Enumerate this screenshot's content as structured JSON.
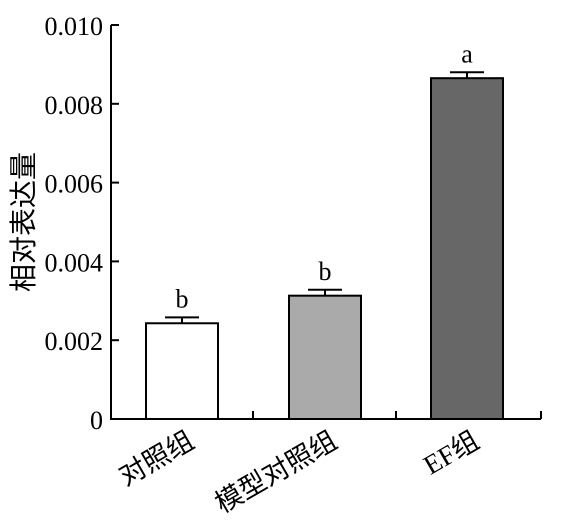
{
  "chart_data": {
    "type": "bar",
    "ylabel": "相对表达量",
    "xlabel": "",
    "ylim": [
      0,
      0.01
    ],
    "yticks": [
      0,
      0.002,
      0.004,
      0.006,
      0.008,
      0.01
    ],
    "ytick_labels": [
      "0",
      "0.002",
      "0.004",
      "0.006",
      "0.008",
      "0.010"
    ],
    "grid": false,
    "categories": [
      "对照组",
      "模型对照组",
      "EF组"
    ],
    "values": [
      0.00243,
      0.00313,
      0.00865
    ],
    "errors": [
      0.00015,
      0.00015,
      0.00015
    ],
    "annotations": [
      "b",
      "b",
      "a"
    ],
    "colors": [
      "#ffffff",
      "#aaaaaa",
      "#676767"
    ]
  }
}
